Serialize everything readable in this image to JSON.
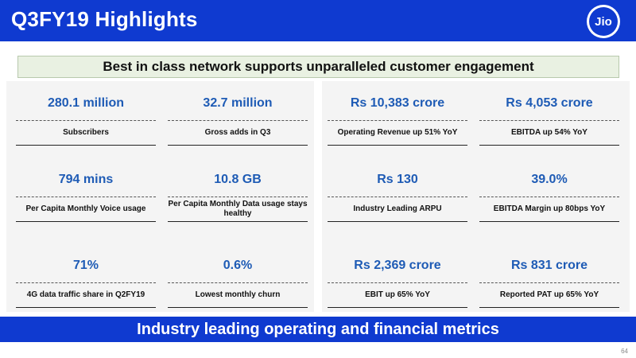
{
  "header": {
    "title": "Q3FY19 Highlights",
    "logo_text": "Jio"
  },
  "banner": "Best in class network supports unparalleled customer engagement",
  "metrics": [
    {
      "value": "280.1 million",
      "label": "Subscribers"
    },
    {
      "value": "32.7 million",
      "label": "Gross adds in Q3"
    },
    {
      "value": "Rs 10,383 crore",
      "label": "Operating Revenue up 51% YoY"
    },
    {
      "value": "Rs 4,053 crore",
      "label": "EBITDA up 54% YoY"
    },
    {
      "value": "794 mins",
      "label": "Per Capita Monthly Voice usage"
    },
    {
      "value": "10.8 GB",
      "label": "Per Capita Monthly Data usage stays healthy"
    },
    {
      "value": "Rs 130",
      "label": "Industry Leading ARPU"
    },
    {
      "value": "39.0%",
      "label": "EBITDA Margin up 80bps YoY"
    },
    {
      "value": "71%",
      "label": "4G data traffic share in Q2FY19"
    },
    {
      "value": "0.6%",
      "label": "Lowest monthly churn"
    },
    {
      "value": "Rs 2,369 crore",
      "label": "EBIT up 65% YoY"
    },
    {
      "value": "Rs 831 crore",
      "label": "Reported PAT up 65% YoY"
    }
  ],
  "footer": "Industry leading operating and financial metrics",
  "page_number": "64",
  "colors": {
    "brand_blue": "#0f3ad0",
    "value_blue": "#1e5bb5",
    "banner_green": "#e9f1e2"
  }
}
